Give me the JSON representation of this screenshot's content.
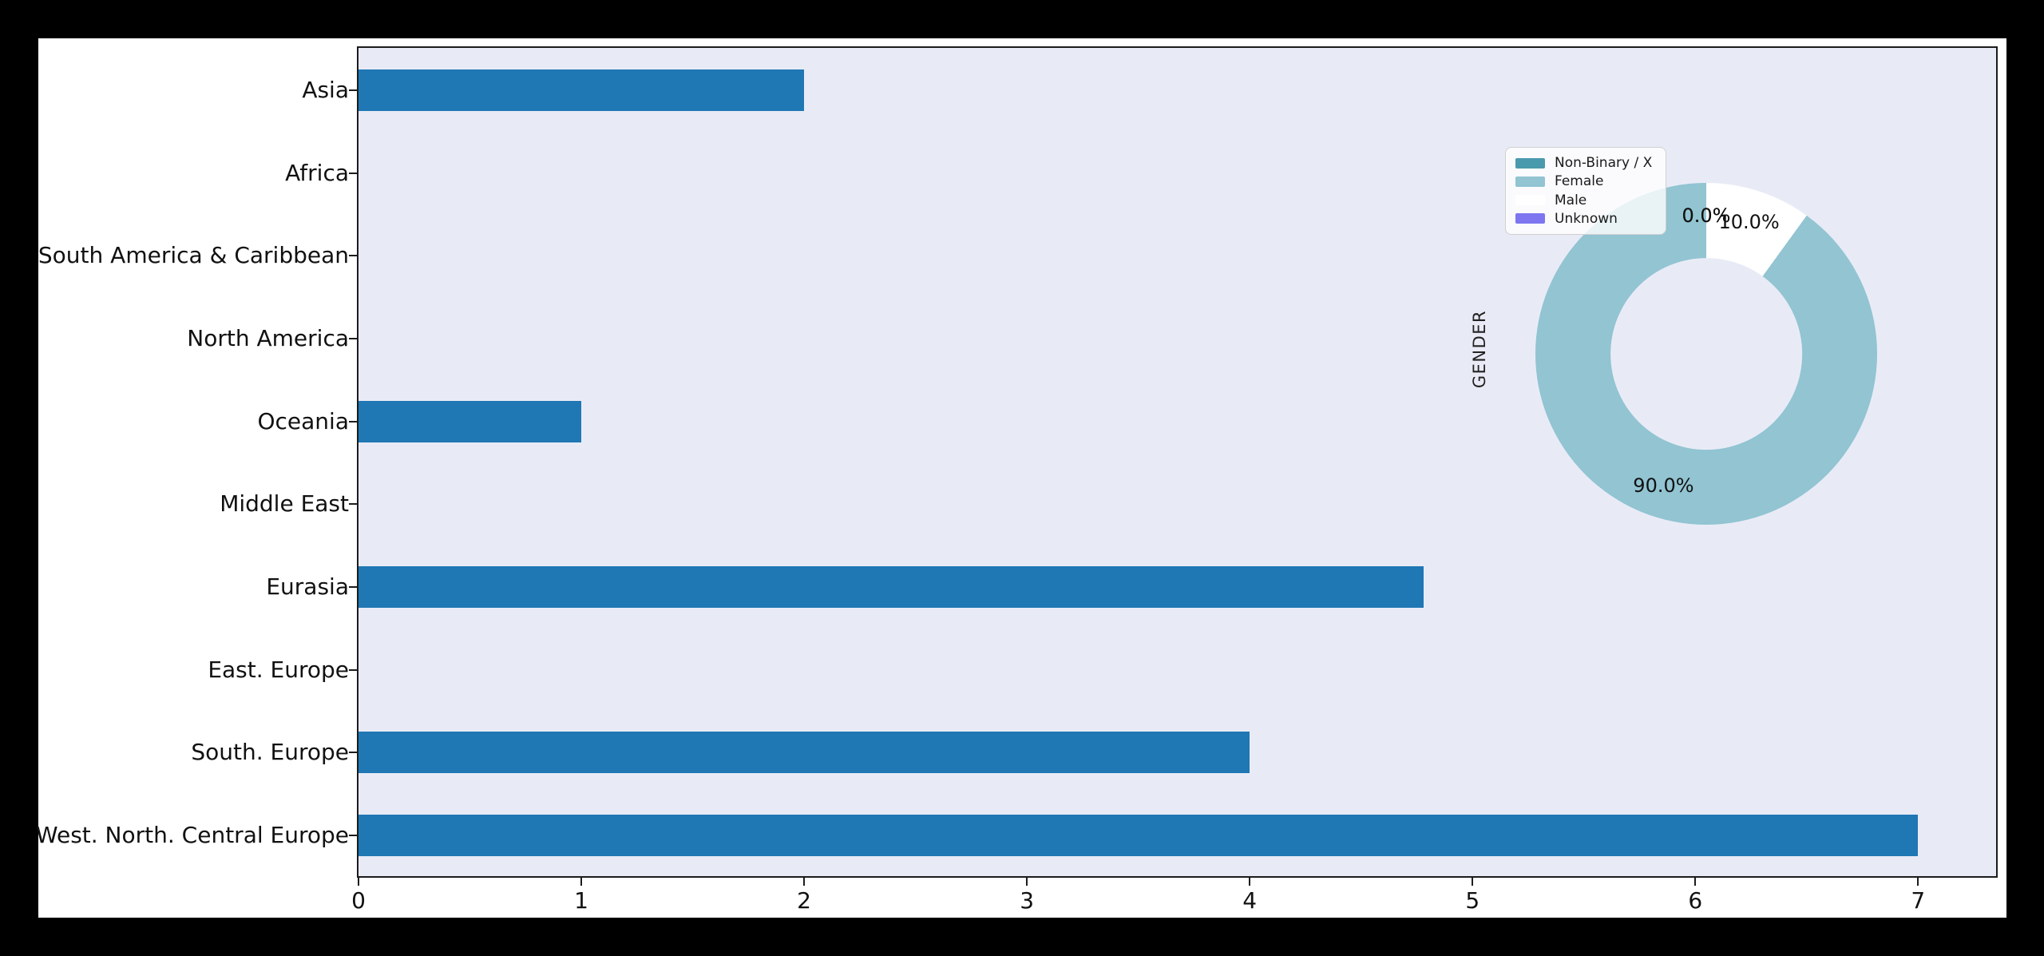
{
  "window": {
    "background": "#000000",
    "figure_background": "#ffffff"
  },
  "chart_data": [
    {
      "type": "bar",
      "orientation": "horizontal",
      "categories": [
        "Asia",
        "Africa",
        "South America & Caribbean",
        "North America",
        "Oceania",
        "Middle East",
        "Eurasia",
        "East. Europe",
        "South. Europe",
        "West. North. Central Europe"
      ],
      "values": [
        2,
        0,
        0,
        0,
        1,
        0,
        4.78,
        0,
        4,
        7
      ],
      "bar_color": "#1f77b4",
      "axes_background": "#e8ebf6",
      "xlim": [
        0,
        7.35
      ],
      "xticks": [
        "0",
        "1",
        "2",
        "3",
        "4",
        "5",
        "6",
        "7"
      ],
      "grid": false,
      "legend_position": "none"
    },
    {
      "type": "pie",
      "subtype": "donut",
      "ylabel": "GENDER",
      "slices": [
        {
          "label": "Non-Binary / X",
          "pct": 0.0,
          "color": "#4a9aad",
          "autopct": "0.0%"
        },
        {
          "label": "Female",
          "pct": 90.0,
          "color": "#92c4d2",
          "autopct": "90.0%"
        },
        {
          "label": "Male",
          "pct": 10.0,
          "color": "#ffffff",
          "autopct": "10.0%"
        },
        {
          "label": "Unknown",
          "pct": 0.0,
          "color": "#7d76f0",
          "autopct": "0.0%"
        }
      ],
      "start_angle_deg": 90,
      "counterclockwise": true,
      "hole_ratio": 0.56,
      "pct_distance": 0.81,
      "legend_position": "upper left"
    }
  ]
}
